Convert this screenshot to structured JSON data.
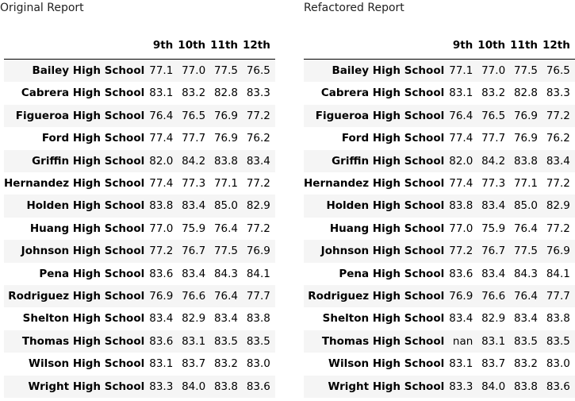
{
  "original": {
    "title": "Original Report",
    "columns": [
      "9th",
      "10th",
      "11th",
      "12th"
    ],
    "rows": [
      {
        "school": "Bailey High School",
        "values": [
          "77.1",
          "77.0",
          "77.5",
          "76.5"
        ]
      },
      {
        "school": "Cabrera High School",
        "values": [
          "83.1",
          "83.2",
          "82.8",
          "83.3"
        ]
      },
      {
        "school": "Figueroa High School",
        "values": [
          "76.4",
          "76.5",
          "76.9",
          "77.2"
        ]
      },
      {
        "school": "Ford High School",
        "values": [
          "77.4",
          "77.7",
          "76.9",
          "76.2"
        ]
      },
      {
        "school": "Griffin High School",
        "values": [
          "82.0",
          "84.2",
          "83.8",
          "83.4"
        ]
      },
      {
        "school": "Hernandez High School",
        "values": [
          "77.4",
          "77.3",
          "77.1",
          "77.2"
        ]
      },
      {
        "school": "Holden High School",
        "values": [
          "83.8",
          "83.4",
          "85.0",
          "82.9"
        ]
      },
      {
        "school": "Huang High School",
        "values": [
          "77.0",
          "75.9",
          "76.4",
          "77.2"
        ]
      },
      {
        "school": "Johnson High School",
        "values": [
          "77.2",
          "76.7",
          "77.5",
          "76.9"
        ]
      },
      {
        "school": "Pena High School",
        "values": [
          "83.6",
          "83.4",
          "84.3",
          "84.1"
        ]
      },
      {
        "school": "Rodriguez High School",
        "values": [
          "76.9",
          "76.6",
          "76.4",
          "77.7"
        ]
      },
      {
        "school": "Shelton High School",
        "values": [
          "83.4",
          "82.9",
          "83.4",
          "83.8"
        ]
      },
      {
        "school": "Thomas High School",
        "values": [
          "83.6",
          "83.1",
          "83.5",
          "83.5"
        ]
      },
      {
        "school": "Wilson High School",
        "values": [
          "83.1",
          "83.7",
          "83.2",
          "83.0"
        ]
      },
      {
        "school": "Wright High School",
        "values": [
          "83.3",
          "84.0",
          "83.8",
          "83.6"
        ]
      }
    ]
  },
  "refactored": {
    "title": "Refactored Report",
    "columns": [
      "9th",
      "10th",
      "11th",
      "12th"
    ],
    "rows": [
      {
        "school": "Bailey High School",
        "values": [
          "77.1",
          "77.0",
          "77.5",
          "76.5"
        ]
      },
      {
        "school": "Cabrera High School",
        "values": [
          "83.1",
          "83.2",
          "82.8",
          "83.3"
        ]
      },
      {
        "school": "Figueroa High School",
        "values": [
          "76.4",
          "76.5",
          "76.9",
          "77.2"
        ]
      },
      {
        "school": "Ford High School",
        "values": [
          "77.4",
          "77.7",
          "76.9",
          "76.2"
        ]
      },
      {
        "school": "Griffin High School",
        "values": [
          "82.0",
          "84.2",
          "83.8",
          "83.4"
        ]
      },
      {
        "school": "Hernandez High School",
        "values": [
          "77.4",
          "77.3",
          "77.1",
          "77.2"
        ]
      },
      {
        "school": "Holden High School",
        "values": [
          "83.8",
          "83.4",
          "85.0",
          "82.9"
        ]
      },
      {
        "school": "Huang High School",
        "values": [
          "77.0",
          "75.9",
          "76.4",
          "77.2"
        ]
      },
      {
        "school": "Johnson High School",
        "values": [
          "77.2",
          "76.7",
          "77.5",
          "76.9"
        ]
      },
      {
        "school": "Pena High School",
        "values": [
          "83.6",
          "83.4",
          "84.3",
          "84.1"
        ]
      },
      {
        "school": "Rodriguez High School",
        "values": [
          "76.9",
          "76.6",
          "76.4",
          "77.7"
        ]
      },
      {
        "school": "Shelton High School",
        "values": [
          "83.4",
          "82.9",
          "83.4",
          "83.8"
        ]
      },
      {
        "school": "Thomas High School",
        "values": [
          "nan",
          "83.1",
          "83.5",
          "83.5"
        ]
      },
      {
        "school": "Wilson High School",
        "values": [
          "83.1",
          "83.7",
          "83.2",
          "83.0"
        ]
      },
      {
        "school": "Wright High School",
        "values": [
          "83.3",
          "84.0",
          "83.8",
          "83.6"
        ]
      }
    ]
  }
}
